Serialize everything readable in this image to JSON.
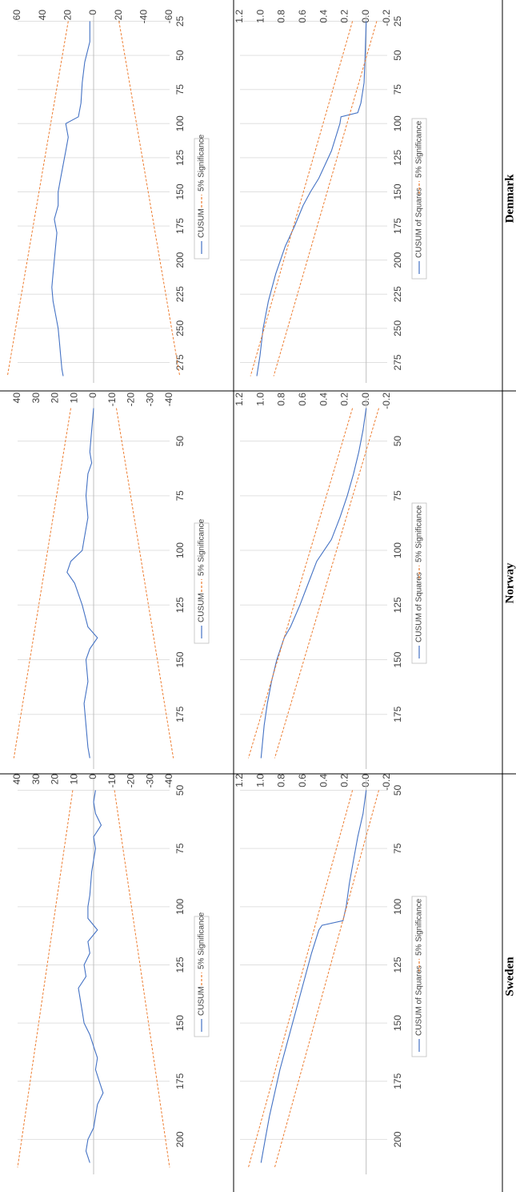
{
  "chart_data": [
    {
      "type": "line",
      "kind": "cusum",
      "country": "Denmark",
      "x_range": [
        20,
        290
      ],
      "y_range": [
        -60,
        60
      ],
      "x_ticks": [
        25,
        50,
        75,
        100,
        125,
        150,
        175,
        200,
        225,
        250,
        275
      ],
      "y_ticks": [
        60,
        40,
        20,
        0,
        -20,
        -40,
        -60
      ],
      "series": [
        {
          "name": "CUSUM",
          "color": "#4472c4",
          "x": [
            25,
            40,
            55,
            70,
            85,
            95,
            100,
            110,
            120,
            130,
            140,
            150,
            160,
            170,
            180,
            190,
            200,
            210,
            220,
            230,
            240,
            250,
            260,
            270,
            280,
            285
          ],
          "y": [
            3,
            3,
            7,
            9,
            10,
            12,
            22,
            20,
            22,
            24,
            26,
            28,
            28,
            31,
            29,
            30,
            31,
            32,
            33,
            32,
            30,
            28,
            27,
            26,
            25,
            24
          ]
        },
        {
          "name": "5% Significance",
          "color": "#ed7d31",
          "x": [
            25,
            285
          ],
          "y": [
            20,
            68
          ]
        },
        {
          "name": "5% Significance",
          "color": "#ed7d31",
          "x": [
            25,
            285
          ],
          "y": [
            -20,
            -68
          ]
        }
      ],
      "legend": [
        "CUSUM",
        "5% Significance"
      ]
    },
    {
      "type": "line",
      "kind": "cusum_sq",
      "country": "Denmark",
      "x_range": [
        20,
        290
      ],
      "y_range": [
        -0.2,
        1.2
      ],
      "x_ticks": [
        25,
        50,
        75,
        100,
        125,
        150,
        175,
        200,
        225,
        250,
        275
      ],
      "y_ticks": [
        "1.2",
        "1.0",
        "0.8",
        "0.6",
        "0.4",
        "0.2",
        "0.0",
        "-0.2"
      ],
      "series": [
        {
          "name": "CUSUM of Squares",
          "color": "#4472c4",
          "x": [
            25,
            50,
            70,
            85,
            92,
            95,
            100,
            120,
            140,
            150,
            160,
            175,
            190,
            210,
            230,
            250,
            270,
            285
          ],
          "y": [
            0.0,
            0.01,
            0.02,
            0.05,
            0.08,
            0.24,
            0.25,
            0.33,
            0.45,
            0.53,
            0.6,
            0.68,
            0.77,
            0.86,
            0.93,
            0.98,
            1.01,
            1.04
          ]
        },
        {
          "name": "5% Significance",
          "color": "#ed7d31",
          "x": [
            25,
            285
          ],
          "y": [
            0.13,
            1.1
          ]
        },
        {
          "name": "5% Significance",
          "color": "#ed7d31",
          "x": [
            25,
            285
          ],
          "y": [
            -0.1,
            0.88
          ]
        }
      ],
      "legend": [
        "CUSUM of Squares",
        "5% Significance"
      ]
    },
    {
      "type": "line",
      "kind": "cusum",
      "country": "Norway",
      "x_range": [
        30,
        200
      ],
      "y_range": [
        -40,
        40
      ],
      "x_ticks": [
        50,
        75,
        100,
        125,
        150,
        175
      ],
      "y_ticks": [
        40,
        30,
        20,
        10,
        0,
        -10,
        -20,
        -30,
        -40
      ],
      "series": [
        {
          "name": "CUSUM",
          "color": "#4472c4",
          "x": [
            35,
            45,
            55,
            60,
            65,
            75,
            85,
            95,
            100,
            105,
            110,
            115,
            125,
            135,
            140,
            145,
            150,
            160,
            170,
            180,
            190,
            195
          ],
          "y": [
            0,
            1,
            2,
            1,
            3,
            4,
            3,
            5,
            6,
            12,
            14,
            10,
            6,
            3,
            -2,
            2,
            4,
            3,
            5,
            4,
            3,
            2
          ]
        },
        {
          "name": "5% Significance",
          "color": "#ed7d31",
          "x": [
            35,
            195
          ],
          "y": [
            12,
            42
          ]
        },
        {
          "name": "5% Significance",
          "color": "#ed7d31",
          "x": [
            35,
            195
          ],
          "y": [
            -12,
            -42
          ]
        }
      ],
      "legend": [
        "CUSUM",
        "5% Significance"
      ]
    },
    {
      "type": "line",
      "kind": "cusum_sq",
      "country": "Norway",
      "x_range": [
        30,
        200
      ],
      "y_range": [
        -0.2,
        1.2
      ],
      "x_ticks": [
        50,
        75,
        100,
        125,
        150,
        175
      ],
      "y_ticks": [
        "1.2",
        "1.0",
        "0.8",
        "0.6",
        "0.4",
        "0.2",
        "0.0",
        "-0.2"
      ],
      "series": [
        {
          "name": "CUSUM of Squares",
          "color": "#4472c4",
          "x": [
            35,
            45,
            55,
            65,
            75,
            85,
            95,
            100,
            105,
            115,
            125,
            135,
            140,
            150,
            160,
            170,
            180,
            195
          ],
          "y": [
            0.0,
            0.03,
            0.07,
            0.12,
            0.18,
            0.25,
            0.33,
            0.4,
            0.47,
            0.55,
            0.63,
            0.72,
            0.78,
            0.85,
            0.9,
            0.94,
            0.97,
            1.0
          ]
        },
        {
          "name": "5% Significance",
          "color": "#ed7d31",
          "x": [
            35,
            195
          ],
          "y": [
            0.13,
            1.12
          ]
        },
        {
          "name": "5% Significance",
          "color": "#ed7d31",
          "x": [
            35,
            195
          ],
          "y": [
            -0.12,
            0.87
          ]
        }
      ],
      "legend": [
        "CUSUM of Squares",
        "5% Significance"
      ]
    },
    {
      "type": "line",
      "kind": "cusum",
      "country": "Sweden",
      "x_range": [
        45,
        215
      ],
      "y_range": [
        -40,
        40
      ],
      "x_ticks": [
        50,
        75,
        100,
        125,
        150,
        175,
        200
      ],
      "y_ticks": [
        40,
        30,
        20,
        10,
        0,
        -10,
        -20,
        -30,
        -40
      ],
      "series": [
        {
          "name": "CUSUM",
          "color": "#4472c4",
          "x": [
            50,
            55,
            60,
            65,
            70,
            75,
            85,
            95,
            100,
            105,
            110,
            115,
            120,
            125,
            130,
            135,
            140,
            145,
            150,
            155,
            160,
            165,
            170,
            175,
            180,
            185,
            190,
            195,
            200,
            205,
            210
          ],
          "y": [
            -1,
            0,
            -1,
            -4,
            0,
            -1,
            1,
            2,
            3,
            3,
            -2,
            3,
            2,
            5,
            4,
            8,
            7,
            6,
            5,
            2,
            0,
            -2,
            -1,
            -3,
            -5,
            -2,
            -1,
            0,
            3,
            4,
            2
          ]
        },
        {
          "name": "5% Significance",
          "color": "#ed7d31",
          "x": [
            50,
            212
          ],
          "y": [
            11,
            40
          ]
        },
        {
          "name": "5% Significance",
          "color": "#ed7d31",
          "x": [
            50,
            212
          ],
          "y": [
            -11,
            -40
          ]
        }
      ],
      "legend": [
        "CUSUM",
        "5% Significance"
      ]
    },
    {
      "type": "line",
      "kind": "cusum_sq",
      "country": "Sweden",
      "x_range": [
        45,
        215
      ],
      "y_range": [
        -0.2,
        1.2
      ],
      "x_ticks": [
        50,
        75,
        100,
        125,
        150,
        175,
        200
      ],
      "y_ticks": [
        "1.2",
        "1.0",
        "0.8",
        "0.6",
        "0.4",
        "0.2",
        "0.0",
        "-0.2"
      ],
      "series": [
        {
          "name": "CUSUM of Squares",
          "color": "#4472c4",
          "x": [
            50,
            60,
            70,
            80,
            90,
            100,
            106,
            108,
            110,
            120,
            130,
            140,
            150,
            160,
            170,
            180,
            190,
            200,
            210
          ],
          "y": [
            0.0,
            0.03,
            0.08,
            0.12,
            0.16,
            0.19,
            0.22,
            0.42,
            0.45,
            0.52,
            0.58,
            0.64,
            0.7,
            0.76,
            0.82,
            0.87,
            0.92,
            0.96,
            1.0
          ]
        },
        {
          "name": "5% Significance",
          "color": "#ed7d31",
          "x": [
            50,
            212
          ],
          "y": [
            0.13,
            1.12
          ]
        },
        {
          "name": "5% Significance",
          "color": "#ed7d31",
          "x": [
            50,
            212
          ],
          "y": [
            -0.12,
            0.87
          ]
        }
      ],
      "legend": [
        "CUSUM of Squares",
        "5% Significance"
      ]
    }
  ],
  "country_labels": [
    "Denmark",
    "Norway",
    "Sweden"
  ]
}
